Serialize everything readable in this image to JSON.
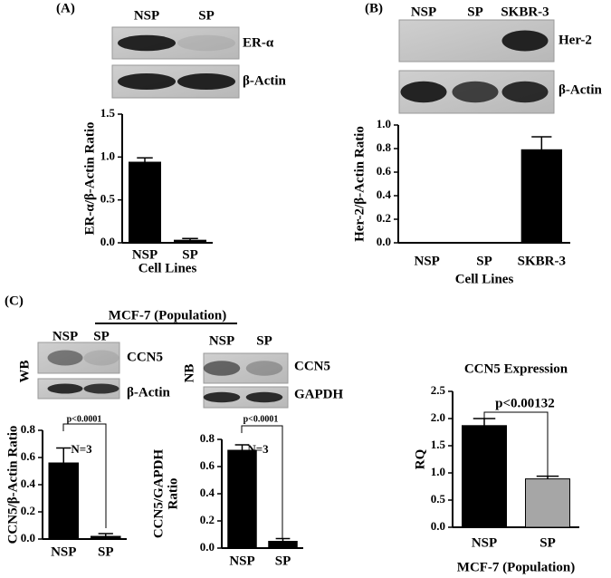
{
  "panel_labels": [
    "(A)",
    "(B)",
    "(C)"
  ],
  "blots": [
    {
      "lanes": [
        "NSP",
        "SP"
      ],
      "rows": [
        "ER-α",
        "β-Actin"
      ]
    },
    {
      "lanes": [
        "NSP",
        "SP",
        "SKBR-3"
      ],
      "rows": [
        "Her-2",
        "β-Actin"
      ]
    },
    {
      "header": "MCF-7 (Population)",
      "side": "WB",
      "lanes": [
        "NSP",
        "SP"
      ],
      "rows": [
        "CCN5",
        "β-Actin"
      ]
    },
    {
      "side": "NB",
      "lanes": [
        "NSP",
        "SP"
      ],
      "rows": [
        "CCN5",
        "GAPDH"
      ]
    }
  ],
  "chart_data": [
    {
      "type": "bar",
      "ylabel": [
        "ER-α/β-Actin Ratio"
      ],
      "xlabel": "Cell Lines",
      "categories": [
        "NSP",
        "SP"
      ],
      "values": [
        0.94,
        0.03
      ],
      "errors": [
        0.05,
        0.02
      ],
      "colors": [
        "#000000",
        "#000000"
      ],
      "ylim": [
        0,
        1.5
      ],
      "yticks": [
        {
          "value": 0,
          "label": "0.0"
        },
        {
          "value": 0.5,
          "label": "0.5"
        },
        {
          "value": 1,
          "label": "1.0"
        },
        {
          "value": 1.5,
          "label": "1.5"
        }
      ]
    },
    {
      "type": "bar",
      "ylabel": [
        "Her-2/β-Actin Ratio"
      ],
      "xlabel": "Cell Lines",
      "categories": [
        "NSP",
        "SP",
        "SKBR-3"
      ],
      "values": [
        0,
        0,
        0.79
      ],
      "errors": [
        0,
        0,
        0.11
      ],
      "colors": [
        "#000000",
        "#000000",
        "#000000"
      ],
      "ylim": [
        0,
        1
      ],
      "yticks": [
        {
          "value": 0,
          "label": "0.0"
        },
        {
          "value": 0.2,
          "label": "0.2"
        },
        {
          "value": 0.4,
          "label": "0.4"
        },
        {
          "value": 0.6,
          "label": "0.6"
        },
        {
          "value": 0.8,
          "label": "0.8"
        },
        {
          "value": 1,
          "label": "1.0"
        }
      ]
    },
    {
      "type": "bar",
      "ylabel": [
        "CCN5/β-Actin Ratio"
      ],
      "annotations": [
        "p<0.0001",
        "N=3"
      ],
      "categories": [
        "NSP",
        "SP"
      ],
      "values": [
        0.56,
        0.02
      ],
      "errors": [
        0.11,
        0.02
      ],
      "colors": [
        "#000000",
        "#000000"
      ],
      "ylim": [
        0,
        0.8
      ],
      "yticks": [
        {
          "value": 0,
          "label": "0.0"
        },
        {
          "value": 0.2,
          "label": "0.2"
        },
        {
          "value": 0.4,
          "label": "0.4"
        },
        {
          "value": 0.6,
          "label": "0.6"
        },
        {
          "value": 0.8,
          "label": "0.8"
        }
      ]
    },
    {
      "type": "bar",
      "ylabel": [
        "CCN5/GAPDH",
        "Ratio"
      ],
      "annotations": [
        "p<0.0001",
        "N=3"
      ],
      "categories": [
        "NSP",
        "SP"
      ],
      "values": [
        0.72,
        0.05
      ],
      "errors": [
        0.04,
        0.02
      ],
      "colors": [
        "#000000",
        "#000000"
      ],
      "ylim": [
        0,
        0.8
      ],
      "yticks": [
        {
          "value": 0,
          "label": "0.0"
        },
        {
          "value": 0.2,
          "label": "0.2"
        },
        {
          "value": 0.4,
          "label": "0.4"
        },
        {
          "value": 0.6,
          "label": "0.6"
        },
        {
          "value": 0.8,
          "label": "0.8"
        }
      ]
    },
    {
      "type": "bar",
      "title": "CCN5 Expression",
      "ylabel": [
        "RQ"
      ],
      "xlabel": "MCF-7 (Population)",
      "annotations": [
        "p<0.00132"
      ],
      "categories": [
        "NSP",
        "SP"
      ],
      "values": [
        1.87,
        0.89
      ],
      "errors": [
        0.13,
        0.05
      ],
      "colors": [
        "#000000",
        "#a6a6a6"
      ],
      "ylim": [
        0,
        2.5
      ],
      "yticks": [
        {
          "value": 0,
          "label": "0.0"
        },
        {
          "value": 0.5,
          "label": "0.5"
        },
        {
          "value": 1,
          "label": "1.0"
        },
        {
          "value": 1.5,
          "label": "1.5"
        },
        {
          "value": 2,
          "label": "2.0"
        },
        {
          "value": 2.5,
          "label": "2.5"
        }
      ]
    }
  ]
}
